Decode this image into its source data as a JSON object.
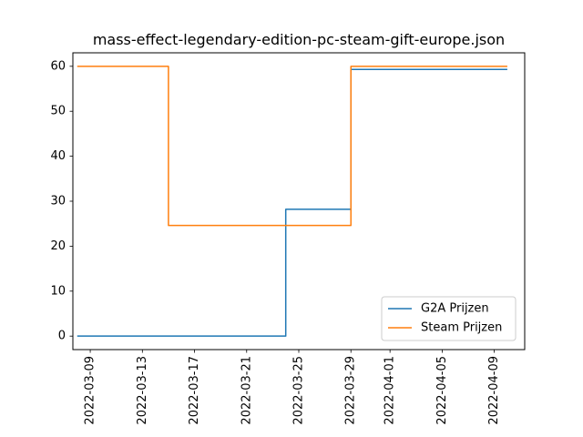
{
  "chart_data": {
    "type": "line",
    "title": "mass-effect-legendary-edition-pc-steam-gift-europe.json",
    "xlabel": "",
    "ylabel": "",
    "xlim": [
      "2022-03-07T16:00",
      "2022-04-11T08:00"
    ],
    "ylim": [
      -3,
      63
    ],
    "xticks": [
      "2022-03-09",
      "2022-03-13",
      "2022-03-17",
      "2022-03-21",
      "2022-03-25",
      "2022-03-29",
      "2022-04-01",
      "2022-04-05",
      "2022-04-09"
    ],
    "yticks": [
      0,
      10,
      20,
      30,
      40,
      50,
      60
    ],
    "grid": false,
    "legend_position": "lower right",
    "series": [
      {
        "name": "G2A Prijzen",
        "color": "#1f77b4",
        "x": [
          "2022-03-08",
          "2022-03-24",
          "2022-03-24",
          "2022-03-29",
          "2022-03-29",
          "2022-04-10"
        ],
        "values": [
          0,
          0,
          28.2,
          28.2,
          59.3,
          59.3
        ]
      },
      {
        "name": "Steam Prijzen",
        "color": "#ff7f0e",
        "x": [
          "2022-03-08",
          "2022-03-15",
          "2022-03-15",
          "2022-03-29",
          "2022-03-29",
          "2022-04-10"
        ],
        "values": [
          60,
          60,
          24.6,
          24.6,
          60,
          60
        ]
      }
    ]
  }
}
